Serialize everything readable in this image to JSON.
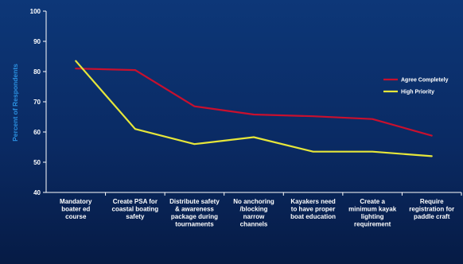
{
  "chart_data": {
    "type": "line",
    "categories": [
      [
        "Mandatory",
        "boater ed",
        "course"
      ],
      [
        "Create PSA for",
        "coastal boating",
        "safety"
      ],
      [
        "Distribute safety",
        "& awareness",
        "package during",
        "tournaments"
      ],
      [
        "No anchoring",
        "/blocking",
        "narrow",
        "channels"
      ],
      [
        "Kayakers need",
        "to have proper",
        "boat education"
      ],
      [
        "Create a",
        "minimum kayak",
        "lighting",
        "requirement"
      ],
      [
        "Require",
        "registration for",
        "paddle craft"
      ]
    ],
    "series": [
      {
        "name": "Agree Completely",
        "color": "#c8102e",
        "values": [
          81,
          80.5,
          68.5,
          65.8,
          65.2,
          64.3,
          58.8
        ]
      },
      {
        "name": "High Priority",
        "color": "#e6e63a",
        "values": [
          83.5,
          61,
          56,
          58.3,
          53.5,
          53.5,
          52
        ]
      }
    ],
    "ylabel": "Percent of Respondents",
    "ylim": [
      40,
      100
    ],
    "yticks": [
      40,
      50,
      60,
      70,
      80,
      90,
      100
    ],
    "legend": "right",
    "grid": false
  }
}
